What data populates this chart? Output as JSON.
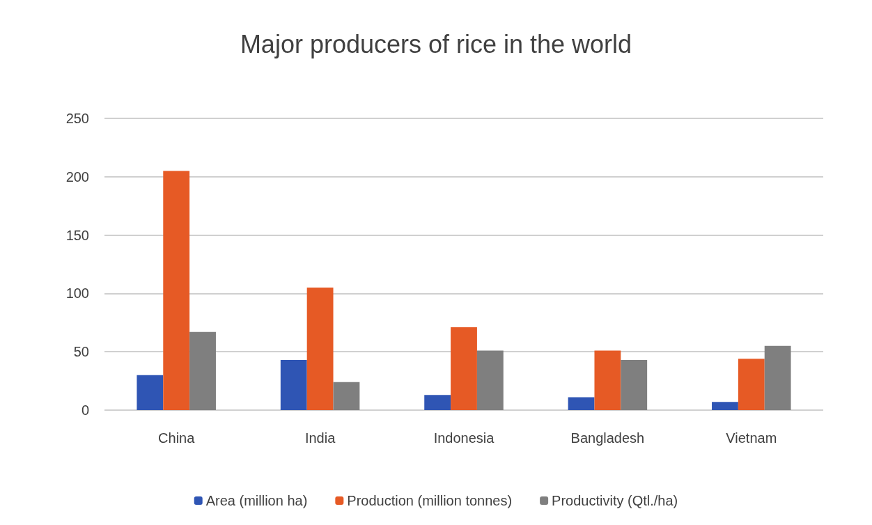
{
  "chart_data": {
    "type": "bar",
    "title": "Major producers of rice in the world",
    "categories": [
      "China",
      "India",
      "Indonesia",
      "Bangladesh",
      "Vietnam"
    ],
    "series": [
      {
        "name": "Area (million ha)",
        "color": "#2f55b4",
        "values": [
          30,
          43,
          13,
          11,
          7
        ]
      },
      {
        "name": "Production (million tonnes)",
        "color": "#e65a25",
        "values": [
          205,
          105,
          71,
          51,
          44
        ]
      },
      {
        "name": "Productivity (Qtl./ha)",
        "color": "#7f7f7f",
        "values": [
          67,
          24,
          51,
          43,
          55
        ]
      }
    ],
    "ylim": [
      0,
      250
    ],
    "yticks": [
      0,
      50,
      100,
      150,
      200,
      250
    ],
    "grid": "y",
    "legend": "bottom"
  }
}
